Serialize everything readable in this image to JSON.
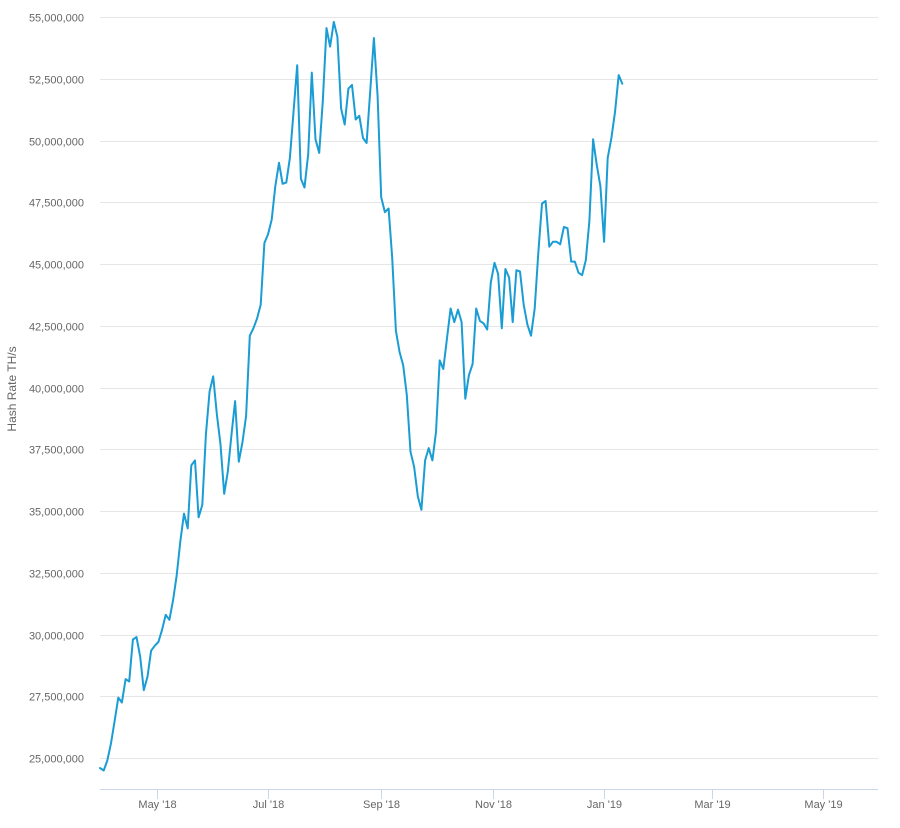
{
  "chart_data": {
    "type": "line",
    "title": "",
    "xlabel": "",
    "ylabel": "Hash Rate TH/s",
    "ylim": [
      23750000,
      55000000
    ],
    "xlim": [
      "2018-03-31",
      "2019-05-31"
    ],
    "grid": true,
    "legend": "none",
    "colors": {
      "line": "#1a9cd4",
      "grid": "#e6e6e6",
      "axis": "#ccd6eb",
      "text": "#666666"
    },
    "y_ticks": [
      {
        "value": 25000000,
        "label": "25,000,000"
      },
      {
        "value": 27500000,
        "label": "27,500,000"
      },
      {
        "value": 30000000,
        "label": "30,000,000"
      },
      {
        "value": 32500000,
        "label": "32,500,000"
      },
      {
        "value": 35000000,
        "label": "35,000,000"
      },
      {
        "value": 37500000,
        "label": "37,500,000"
      },
      {
        "value": 40000000,
        "label": "40,000,000"
      },
      {
        "value": 42500000,
        "label": "42,500,000"
      },
      {
        "value": 45000000,
        "label": "45,000,000"
      },
      {
        "value": 47500000,
        "label": "47,500,000"
      },
      {
        "value": 50000000,
        "label": "50,000,000"
      },
      {
        "value": 52500000,
        "label": "52,500,000"
      },
      {
        "value": 55000000,
        "label": "55,000,000"
      }
    ],
    "x_ticks": [
      {
        "date": "2018-05-01",
        "label": "May '18"
      },
      {
        "date": "2018-07-01",
        "label": "Jul '18"
      },
      {
        "date": "2018-09-01",
        "label": "Sep '18"
      },
      {
        "date": "2018-11-01",
        "label": "Nov '18"
      },
      {
        "date": "2019-01-01",
        "label": "Jan '19"
      },
      {
        "date": "2019-03-01",
        "label": "Mar '19"
      },
      {
        "date": "2019-05-01",
        "label": "May '19"
      }
    ],
    "series": [
      {
        "points": [
          [
            "2018-03-31",
            24600000
          ],
          [
            "2018-04-02",
            24500000
          ],
          [
            "2018-04-04",
            24900000
          ],
          [
            "2018-04-06",
            25600000
          ],
          [
            "2018-04-08",
            26500000
          ],
          [
            "2018-04-10",
            27450000
          ],
          [
            "2018-04-12",
            27250000
          ],
          [
            "2018-04-14",
            28200000
          ],
          [
            "2018-04-16",
            28100000
          ],
          [
            "2018-04-18",
            29800000
          ],
          [
            "2018-04-20",
            29900000
          ],
          [
            "2018-04-22",
            29100000
          ],
          [
            "2018-04-24",
            27750000
          ],
          [
            "2018-04-26",
            28300000
          ],
          [
            "2018-04-28",
            29350000
          ],
          [
            "2018-04-30",
            29550000
          ],
          [
            "2018-05-02",
            29700000
          ],
          [
            "2018-05-04",
            30200000
          ],
          [
            "2018-05-06",
            30800000
          ],
          [
            "2018-05-08",
            30600000
          ],
          [
            "2018-05-10",
            31400000
          ],
          [
            "2018-05-12",
            32400000
          ],
          [
            "2018-05-14",
            33800000
          ],
          [
            "2018-05-16",
            34900000
          ],
          [
            "2018-05-18",
            34300000
          ],
          [
            "2018-05-20",
            36850000
          ],
          [
            "2018-05-22",
            37050000
          ],
          [
            "2018-05-24",
            34750000
          ],
          [
            "2018-05-26",
            35250000
          ],
          [
            "2018-05-28",
            38100000
          ],
          [
            "2018-05-30",
            39850000
          ],
          [
            "2018-06-01",
            40450000
          ],
          [
            "2018-06-03",
            38900000
          ],
          [
            "2018-06-05",
            37700000
          ],
          [
            "2018-06-07",
            35700000
          ],
          [
            "2018-06-09",
            36600000
          ],
          [
            "2018-06-11",
            38100000
          ],
          [
            "2018-06-13",
            39450000
          ],
          [
            "2018-06-15",
            37000000
          ],
          [
            "2018-06-17",
            37800000
          ],
          [
            "2018-06-19",
            38850000
          ],
          [
            "2018-06-21",
            42100000
          ],
          [
            "2018-06-23",
            42400000
          ],
          [
            "2018-06-25",
            42800000
          ],
          [
            "2018-06-27",
            43350000
          ],
          [
            "2018-06-29",
            45850000
          ],
          [
            "2018-07-01",
            46200000
          ],
          [
            "2018-07-03",
            46800000
          ],
          [
            "2018-07-05",
            48150000
          ],
          [
            "2018-07-07",
            49100000
          ],
          [
            "2018-07-09",
            48250000
          ],
          [
            "2018-07-11",
            48300000
          ],
          [
            "2018-07-13",
            49300000
          ],
          [
            "2018-07-15",
            51200000
          ],
          [
            "2018-07-17",
            53050000
          ],
          [
            "2018-07-19",
            48450000
          ],
          [
            "2018-07-21",
            48100000
          ],
          [
            "2018-07-23",
            49450000
          ],
          [
            "2018-07-25",
            52750000
          ],
          [
            "2018-07-27",
            50050000
          ],
          [
            "2018-07-29",
            49500000
          ],
          [
            "2018-07-31",
            51600000
          ],
          [
            "2018-08-02",
            54550000
          ],
          [
            "2018-08-04",
            53800000
          ],
          [
            "2018-08-06",
            54800000
          ],
          [
            "2018-08-08",
            54200000
          ],
          [
            "2018-08-10",
            51300000
          ],
          [
            "2018-08-12",
            50650000
          ],
          [
            "2018-08-14",
            52100000
          ],
          [
            "2018-08-16",
            52250000
          ],
          [
            "2018-08-18",
            50850000
          ],
          [
            "2018-08-20",
            51000000
          ],
          [
            "2018-08-22",
            50100000
          ],
          [
            "2018-08-24",
            49900000
          ],
          [
            "2018-08-26",
            52050000
          ],
          [
            "2018-08-28",
            54150000
          ],
          [
            "2018-08-30",
            51800000
          ],
          [
            "2018-09-01",
            47700000
          ],
          [
            "2018-09-03",
            47100000
          ],
          [
            "2018-09-05",
            47250000
          ],
          [
            "2018-09-07",
            45250000
          ],
          [
            "2018-09-09",
            42300000
          ],
          [
            "2018-09-11",
            41450000
          ],
          [
            "2018-09-13",
            40900000
          ],
          [
            "2018-09-15",
            39700000
          ],
          [
            "2018-09-17",
            37400000
          ],
          [
            "2018-09-19",
            36800000
          ],
          [
            "2018-09-21",
            35600000
          ],
          [
            "2018-09-23",
            35050000
          ],
          [
            "2018-09-25",
            37050000
          ],
          [
            "2018-09-27",
            37550000
          ],
          [
            "2018-09-29",
            37050000
          ],
          [
            "2018-10-01",
            38200000
          ],
          [
            "2018-10-03",
            41100000
          ],
          [
            "2018-10-05",
            40750000
          ],
          [
            "2018-10-07",
            42000000
          ],
          [
            "2018-10-09",
            43200000
          ],
          [
            "2018-10-11",
            42650000
          ],
          [
            "2018-10-13",
            43150000
          ],
          [
            "2018-10-15",
            42650000
          ],
          [
            "2018-10-17",
            39550000
          ],
          [
            "2018-10-19",
            40500000
          ],
          [
            "2018-10-21",
            40950000
          ],
          [
            "2018-10-23",
            43200000
          ],
          [
            "2018-10-25",
            42700000
          ],
          [
            "2018-10-27",
            42600000
          ],
          [
            "2018-10-29",
            42350000
          ],
          [
            "2018-10-31",
            44250000
          ],
          [
            "2018-11-02",
            45050000
          ],
          [
            "2018-11-04",
            44600000
          ],
          [
            "2018-11-06",
            42400000
          ],
          [
            "2018-11-08",
            44800000
          ],
          [
            "2018-11-10",
            44450000
          ],
          [
            "2018-11-12",
            42650000
          ],
          [
            "2018-11-14",
            44750000
          ],
          [
            "2018-11-16",
            44700000
          ],
          [
            "2018-11-18",
            43350000
          ],
          [
            "2018-11-20",
            42550000
          ],
          [
            "2018-11-22",
            42100000
          ],
          [
            "2018-11-24",
            43200000
          ],
          [
            "2018-11-26",
            45450000
          ],
          [
            "2018-11-28",
            47450000
          ],
          [
            "2018-11-30",
            47550000
          ],
          [
            "2018-12-02",
            45700000
          ],
          [
            "2018-12-04",
            45900000
          ],
          [
            "2018-12-06",
            45900000
          ],
          [
            "2018-12-08",
            45800000
          ],
          [
            "2018-12-10",
            46500000
          ],
          [
            "2018-12-12",
            46450000
          ],
          [
            "2018-12-14",
            45100000
          ],
          [
            "2018-12-16",
            45100000
          ],
          [
            "2018-12-18",
            44650000
          ],
          [
            "2018-12-20",
            44550000
          ],
          [
            "2018-12-22",
            45150000
          ],
          [
            "2018-12-24",
            46750000
          ],
          [
            "2018-12-26",
            50050000
          ],
          [
            "2018-12-28",
            49000000
          ],
          [
            "2018-12-30",
            48150000
          ],
          [
            "2019-01-01",
            45900000
          ],
          [
            "2019-01-03",
            49300000
          ],
          [
            "2019-01-05",
            50100000
          ],
          [
            "2019-01-07",
            51150000
          ],
          [
            "2019-01-09",
            52650000
          ],
          [
            "2019-01-11",
            52300000
          ]
        ]
      }
    ]
  }
}
